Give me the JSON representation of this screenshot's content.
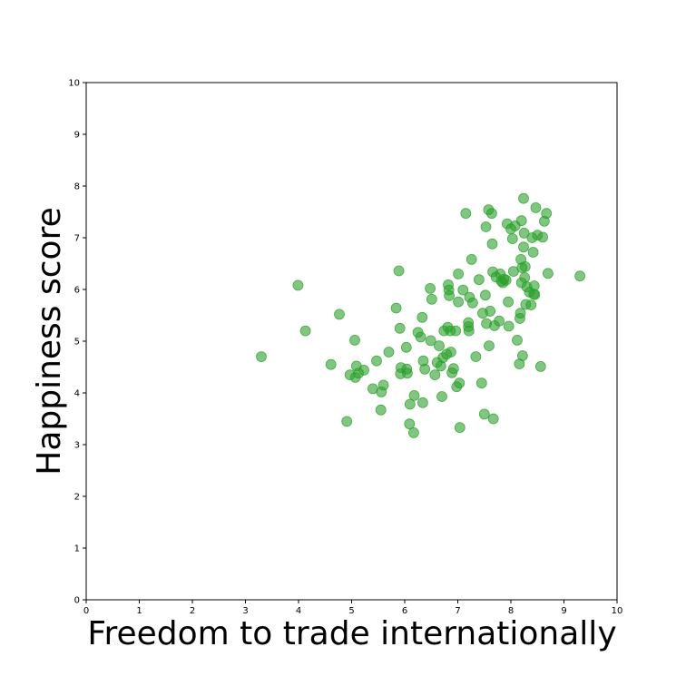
{
  "chart_data": {
    "type": "scatter",
    "title": "",
    "xlabel": "Freedom to trade internationally",
    "ylabel": "Happiness score",
    "xlim": [
      0,
      10
    ],
    "ylim": [
      0,
      10
    ],
    "xticks": [
      "0",
      "1",
      "2",
      "3",
      "4",
      "5",
      "6",
      "7",
      "8",
      "9",
      "10"
    ],
    "yticks": [
      "0",
      "1",
      "2",
      "3",
      "4",
      "5",
      "6",
      "7",
      "8",
      "9",
      "10"
    ],
    "grid": false,
    "legend": "none",
    "marker_color": "#2ca02c",
    "marker_opacity": 0.6,
    "points": [
      [
        3.3,
        4.7
      ],
      [
        3.99,
        6.08
      ],
      [
        4.13,
        5.2
      ],
      [
        4.61,
        4.55
      ],
      [
        4.77,
        5.52
      ],
      [
        4.91,
        3.45
      ],
      [
        4.97,
        4.35
      ],
      [
        5.07,
        4.3
      ],
      [
        5.06,
        5.02
      ],
      [
        5.09,
        4.52
      ],
      [
        5.13,
        4.38
      ],
      [
        5.23,
        4.44
      ],
      [
        5.4,
        4.08
      ],
      [
        5.47,
        4.62
      ],
      [
        5.55,
        3.67
      ],
      [
        5.56,
        4.02
      ],
      [
        5.6,
        4.15
      ],
      [
        5.7,
        4.79
      ],
      [
        5.84,
        5.64
      ],
      [
        5.89,
        6.36
      ],
      [
        5.91,
        5.25
      ],
      [
        5.92,
        4.37
      ],
      [
        5.93,
        4.49
      ],
      [
        6.03,
        4.88
      ],
      [
        6.04,
        4.46
      ],
      [
        6.05,
        4.38
      ],
      [
        6.09,
        3.4
      ],
      [
        6.1,
        3.78
      ],
      [
        6.17,
        3.23
      ],
      [
        6.18,
        3.95
      ],
      [
        6.25,
        5.17
      ],
      [
        6.3,
        5.08
      ],
      [
        6.33,
        5.46
      ],
      [
        6.34,
        3.81
      ],
      [
        6.35,
        4.62
      ],
      [
        6.38,
        4.46
      ],
      [
        6.48,
        6.02
      ],
      [
        6.49,
        5.01
      ],
      [
        6.51,
        5.81
      ],
      [
        6.57,
        4.35
      ],
      [
        6.61,
        4.59
      ],
      [
        6.65,
        4.91
      ],
      [
        6.68,
        4.52
      ],
      [
        6.7,
        3.93
      ],
      [
        6.72,
        4.68
      ],
      [
        6.74,
        5.2
      ],
      [
        6.79,
        4.75
      ],
      [
        6.81,
        5.27
      ],
      [
        6.82,
        6.09
      ],
      [
        6.83,
        5.99
      ],
      [
        6.84,
        5.88
      ],
      [
        6.86,
        5.2
      ],
      [
        6.87,
        4.79
      ],
      [
        6.89,
        4.39
      ],
      [
        6.92,
        4.47
      ],
      [
        6.96,
        5.2
      ],
      [
        6.98,
        4.12
      ],
      [
        7.01,
        5.76
      ],
      [
        7.01,
        6.3
      ],
      [
        7.03,
        4.19
      ],
      [
        7.04,
        3.33
      ],
      [
        7.1,
        5.99
      ],
      [
        7.15,
        7.47
      ],
      [
        7.2,
        5.28
      ],
      [
        7.2,
        5.36
      ],
      [
        7.21,
        5.2
      ],
      [
        7.22,
        5.85
      ],
      [
        7.26,
        6.58
      ],
      [
        7.28,
        5.74
      ],
      [
        7.34,
        4.7
      ],
      [
        7.4,
        6.19
      ],
      [
        7.45,
        4.19
      ],
      [
        7.47,
        5.54
      ],
      [
        7.5,
        3.59
      ],
      [
        7.52,
        5.89
      ],
      [
        7.53,
        7.21
      ],
      [
        7.54,
        5.34
      ],
      [
        7.58,
        7.54
      ],
      [
        7.59,
        4.91
      ],
      [
        7.61,
        5.58
      ],
      [
        7.64,
        7.47
      ],
      [
        7.65,
        6.88
      ],
      [
        7.66,
        6.34
      ],
      [
        7.67,
        3.5
      ],
      [
        7.69,
        5.3
      ],
      [
        7.72,
        6.24
      ],
      [
        7.78,
        5.39
      ],
      [
        7.8,
        6.3
      ],
      [
        7.82,
        6.16
      ],
      [
        7.85,
        6.13
      ],
      [
        7.87,
        6.2
      ],
      [
        7.91,
        6.18
      ],
      [
        7.93,
        7.27
      ],
      [
        7.95,
        5.76
      ],
      [
        7.96,
        5.29
      ],
      [
        8.0,
        7.17
      ],
      [
        8.03,
        6.98
      ],
      [
        8.05,
        6.35
      ],
      [
        8.08,
        7.23
      ],
      [
        8.12,
        5.02
      ],
      [
        8.16,
        4.56
      ],
      [
        8.17,
        5.44
      ],
      [
        8.18,
        5.54
      ],
      [
        8.19,
        6.58
      ],
      [
        8.2,
        6.13
      ],
      [
        8.2,
        7.33
      ],
      [
        8.21,
        6.42
      ],
      [
        8.22,
        4.72
      ],
      [
        8.24,
        7.76
      ],
      [
        8.24,
        6.82
      ],
      [
        8.25,
        7.09
      ],
      [
        8.26,
        6.23
      ],
      [
        8.27,
        6.44
      ],
      [
        8.28,
        5.71
      ],
      [
        8.3,
        6.05
      ],
      [
        8.35,
        5.95
      ],
      [
        8.38,
        5.7
      ],
      [
        8.4,
        7.0
      ],
      [
        8.42,
        6.72
      ],
      [
        8.43,
        5.91
      ],
      [
        8.44,
        6.07
      ],
      [
        8.45,
        5.9
      ],
      [
        8.47,
        7.58
      ],
      [
        8.5,
        7.05
      ],
      [
        8.56,
        4.51
      ],
      [
        8.6,
        7.01
      ],
      [
        8.63,
        7.32
      ],
      [
        8.67,
        7.47
      ],
      [
        8.7,
        6.31
      ],
      [
        9.3,
        6.26
      ]
    ]
  }
}
